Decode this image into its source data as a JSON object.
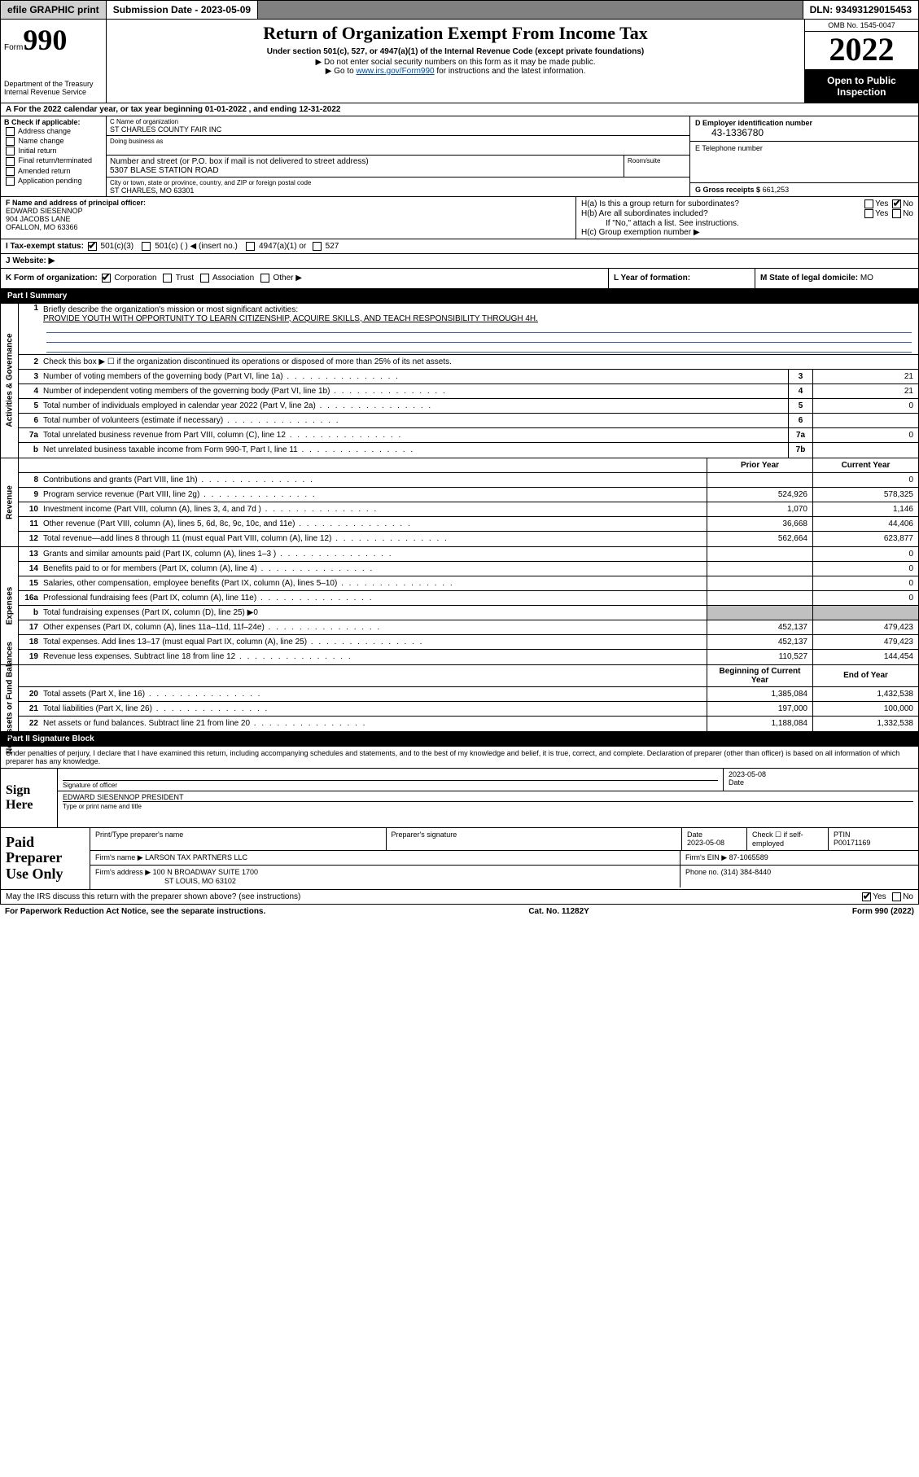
{
  "topbar": {
    "efile": "efile GRAPHIC print",
    "subdate_label": "Submission Date - 2023-05-09",
    "dln": "DLN: 93493129015453"
  },
  "header": {
    "form_prefix": "Form",
    "form_num": "990",
    "dept": "Department of the Treasury",
    "irs": "Internal Revenue Service",
    "title": "Return of Organization Exempt From Income Tax",
    "sub1": "Under section 501(c), 527, or 4947(a)(1) of the Internal Revenue Code (except private foundations)",
    "sub2": "Do not enter social security numbers on this form as it may be made public.",
    "sub3": "Go to www.irs.gov/Form990 for instructions and the latest information.",
    "omb": "OMB No. 1545-0047",
    "year": "2022",
    "inspection": "Open to Public Inspection"
  },
  "row_a": "A For the 2022 calendar year, or tax year beginning 01-01-2022   , and ending 12-31-2022",
  "section_b": {
    "label": "B Check if applicable:",
    "opts": [
      "Address change",
      "Name change",
      "Initial return",
      "Final return/terminated",
      "Amended return",
      "Application pending"
    ]
  },
  "section_c": {
    "name_label": "C Name of organization",
    "name": "ST CHARLES COUNTY FAIR INC",
    "dba_label": "Doing business as",
    "addr_label": "Number and street (or P.O. box if mail is not delivered to street address)",
    "room_label": "Room/suite",
    "addr": "5307 BLASE STATION ROAD",
    "city_label": "City or town, state or province, country, and ZIP or foreign postal code",
    "city": "ST CHARLES, MO  63301"
  },
  "section_d": {
    "label": "D Employer identification number",
    "ein": "43-1336780"
  },
  "section_e": {
    "label": "E Telephone number"
  },
  "section_g": {
    "label": "G Gross receipts $",
    "val": "661,253"
  },
  "section_f": {
    "label": "F Name and address of principal officer:",
    "name": "EDWARD SIESENNOP",
    "addr1": "904 JACOBS LANE",
    "addr2": "OFALLON, MO  63366"
  },
  "section_h": {
    "ha": "H(a)  Is this a group return for subordinates?",
    "hb": "H(b)  Are all subordinates included?",
    "hb_note": "If \"No,\" attach a list. See instructions.",
    "hc": "H(c)  Group exemption number ▶"
  },
  "row_i": {
    "label": "I   Tax-exempt status:",
    "opts": [
      "501(c)(3)",
      "501(c) (  ) ◀ (insert no.)",
      "4947(a)(1) or",
      "527"
    ]
  },
  "row_j": {
    "label": "J   Website: ▶"
  },
  "row_k": "K Form of organization:",
  "row_k_opts": [
    "Corporation",
    "Trust",
    "Association",
    "Other ▶"
  ],
  "row_l": "L Year of formation:",
  "row_m": {
    "label": "M State of legal domicile:",
    "val": "MO"
  },
  "part1": {
    "hdr": "Part I      Summary"
  },
  "summary": {
    "q1": "Briefly describe the organization's mission or most significant activities:",
    "q1_ans": "PROVIDE YOUTH WITH OPPORTUNITY TO LEARN CITIZENSHIP, ACQUIRE SKILLS, AND TEACH RESPONSIBILITY THROUGH 4H.",
    "q2": "Check this box ▶ ☐  if the organization discontinued its operations or disposed of more than 25% of its net assets.",
    "rows_gov": [
      {
        "n": "3",
        "d": "Number of voting members of the governing body (Part VI, line 1a)",
        "box": "3",
        "v": "21"
      },
      {
        "n": "4",
        "d": "Number of independent voting members of the governing body (Part VI, line 1b)",
        "box": "4",
        "v": "21"
      },
      {
        "n": "5",
        "d": "Total number of individuals employed in calendar year 2022 (Part V, line 2a)",
        "box": "5",
        "v": "0"
      },
      {
        "n": "6",
        "d": "Total number of volunteers (estimate if necessary)",
        "box": "6",
        "v": ""
      },
      {
        "n": "7a",
        "d": "Total unrelated business revenue from Part VIII, column (C), line 12",
        "box": "7a",
        "v": "0"
      },
      {
        "n": "b",
        "d": "Net unrelated business taxable income from Form 990-T, Part I, line 11",
        "box": "7b",
        "v": ""
      }
    ],
    "col_prior": "Prior Year",
    "col_curr": "Current Year",
    "rows_rev": [
      {
        "n": "8",
        "d": "Contributions and grants (Part VIII, line 1h)",
        "p": "",
        "c": "0"
      },
      {
        "n": "9",
        "d": "Program service revenue (Part VIII, line 2g)",
        "p": "524,926",
        "c": "578,325"
      },
      {
        "n": "10",
        "d": "Investment income (Part VIII, column (A), lines 3, 4, and 7d )",
        "p": "1,070",
        "c": "1,146"
      },
      {
        "n": "11",
        "d": "Other revenue (Part VIII, column (A), lines 5, 6d, 8c, 9c, 10c, and 11e)",
        "p": "36,668",
        "c": "44,406"
      },
      {
        "n": "12",
        "d": "Total revenue—add lines 8 through 11 (must equal Part VIII, column (A), line 12)",
        "p": "562,664",
        "c": "623,877"
      }
    ],
    "rows_exp": [
      {
        "n": "13",
        "d": "Grants and similar amounts paid (Part IX, column (A), lines 1–3 )",
        "p": "",
        "c": "0"
      },
      {
        "n": "14",
        "d": "Benefits paid to or for members (Part IX, column (A), line 4)",
        "p": "",
        "c": "0"
      },
      {
        "n": "15",
        "d": "Salaries, other compensation, employee benefits (Part IX, column (A), lines 5–10)",
        "p": "",
        "c": "0"
      },
      {
        "n": "16a",
        "d": "Professional fundraising fees (Part IX, column (A), line 11e)",
        "p": "",
        "c": "0"
      },
      {
        "n": "b",
        "d": "Total fundraising expenses (Part IX, column (D), line 25) ▶0",
        "p": "grey",
        "c": "grey"
      },
      {
        "n": "17",
        "d": "Other expenses (Part IX, column (A), lines 11a–11d, 11f–24e)",
        "p": "452,137",
        "c": "479,423"
      },
      {
        "n": "18",
        "d": "Total expenses. Add lines 13–17 (must equal Part IX, column (A), line 25)",
        "p": "452,137",
        "c": "479,423"
      },
      {
        "n": "19",
        "d": "Revenue less expenses. Subtract line 18 from line 12",
        "p": "110,527",
        "c": "144,454"
      }
    ],
    "col_beg": "Beginning of Current Year",
    "col_end": "End of Year",
    "rows_net": [
      {
        "n": "20",
        "d": "Total assets (Part X, line 16)",
        "p": "1,385,084",
        "c": "1,432,538"
      },
      {
        "n": "21",
        "d": "Total liabilities (Part X, line 26)",
        "p": "197,000",
        "c": "100,000"
      },
      {
        "n": "22",
        "d": "Net assets or fund balances. Subtract line 21 from line 20",
        "p": "1,188,084",
        "c": "1,332,538"
      }
    ]
  },
  "part2": {
    "hdr": "Part II      Signature Block"
  },
  "sig_intro": "Under penalties of perjury, I declare that I have examined this return, including accompanying schedules and statements, and to the best of my knowledge and belief, it is true, correct, and complete. Declaration of preparer (other than officer) is based on all information of which preparer has any knowledge.",
  "sign": {
    "label": "Sign Here",
    "sig_of_officer": "Signature of officer",
    "date": "Date",
    "date_val": "2023-05-08",
    "name": "EDWARD SIESENNOP  PRESIDENT",
    "name_label": "Type or print name and title"
  },
  "paid": {
    "label": "Paid Preparer Use Only",
    "h1": "Print/Type preparer's name",
    "h2": "Preparer's signature",
    "h3": "Date",
    "h3v": "2023-05-08",
    "h4": "Check ☐ if self-employed",
    "h5": "PTIN",
    "h5v": "P00171169",
    "firm_label": "Firm's name    ▶",
    "firm": "LARSON TAX PARTNERS LLC",
    "ein_label": "Firm's EIN ▶",
    "ein": "87-1065589",
    "addr_label": "Firm's address ▶",
    "addr1": "100 N BROADWAY SUITE 1700",
    "addr2": "ST LOUIS, MO  63102",
    "phone_label": "Phone no.",
    "phone": "(314) 384-8440"
  },
  "footer": {
    "discuss": "May the IRS discuss this return with the preparer shown above? (see instructions)",
    "pra": "For Paperwork Reduction Act Notice, see the separate instructions.",
    "cat": "Cat. No. 11282Y",
    "form": "Form 990 (2022)"
  },
  "vlabels": {
    "gov": "Activities & Governance",
    "rev": "Revenue",
    "exp": "Expenses",
    "net": "Net Assets or Fund Balances"
  }
}
